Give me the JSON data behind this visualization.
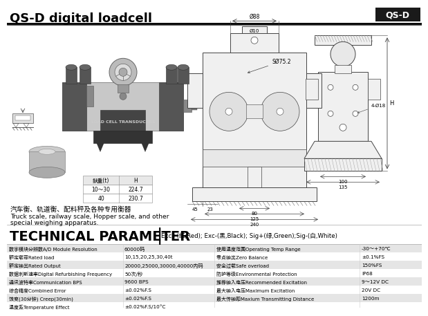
{
  "title": "QS-D digital loadcell",
  "title_tag": "QS-D",
  "bg_color": "#f0f0ec",
  "tech_title": "TECHNICAL PARAMETER",
  "tech_subtitle": "Exc+(红,Red); Exc-(黑,Black); Sig+(绿,Green);Sig-(白,White)",
  "table_rows_left": [
    [
      "数字模块分辨数A/D Module Resolution",
      "60000码"
    ],
    [
      "额定载荷Rated load",
      "10,15,20,25,30,40t"
    ],
    [
      "额定输出Rated Output",
      "20000,25000,30000,40000内码"
    ],
    [
      "数据刺新速率Digital Refurbishing Frequency",
      "50次/秒"
    ],
    [
      "通讯波特率Communication BPS",
      "9600 BPS"
    ],
    [
      "综合精度Combined Error",
      "±0.02%F.S"
    ],
    [
      "蚀变(30分钟) Creep(30min)",
      "±0.02%F.S"
    ],
    [
      "温度系Temperature Effect",
      "±0.02%F.S/10°C"
    ]
  ],
  "table_rows_right": [
    [
      "使用温度范围Operating Temp Range",
      "-30～+70℃"
    ],
    [
      "零点输出Zero Balance",
      "±0.1%FS"
    ],
    [
      "安全过载Safe overload",
      "150%FS"
    ],
    [
      "防护等级Environmental Protection",
      "IP68"
    ],
    [
      "推荐输入电压Recommended Excitation",
      "9～12V DC"
    ],
    [
      "最大输入电压Maximum Excitation",
      "20V DC"
    ],
    [
      "最大传输距Maxium Transmitting Distance",
      "1200m"
    ],
    [
      "",
      ""
    ]
  ],
  "dim_table_headers": [
    "鈇重(t)",
    "H"
  ],
  "dim_table_rows": [
    [
      "10～30",
      "224.7"
    ],
    [
      "40",
      "230.7"
    ]
  ],
  "description_cn": "汽车衡、轨道衡、配料秤及各种专用衡器",
  "description_en1": "Truck scale, railway scale, Hopper scale, and other",
  "description_en2": "special weighing apparatus.",
  "dim_88": "Ø88",
  "dim_10": "Ø10",
  "dim_s762": "SØ75.2",
  "dim_80": "80",
  "dim_125": "125",
  "dim_240": "240",
  "dim_45": "45",
  "dim_23": "23",
  "dim_H": "H",
  "dim_100": "100",
  "dim_135": "135",
  "dim_4phi18": "4-Ø18"
}
